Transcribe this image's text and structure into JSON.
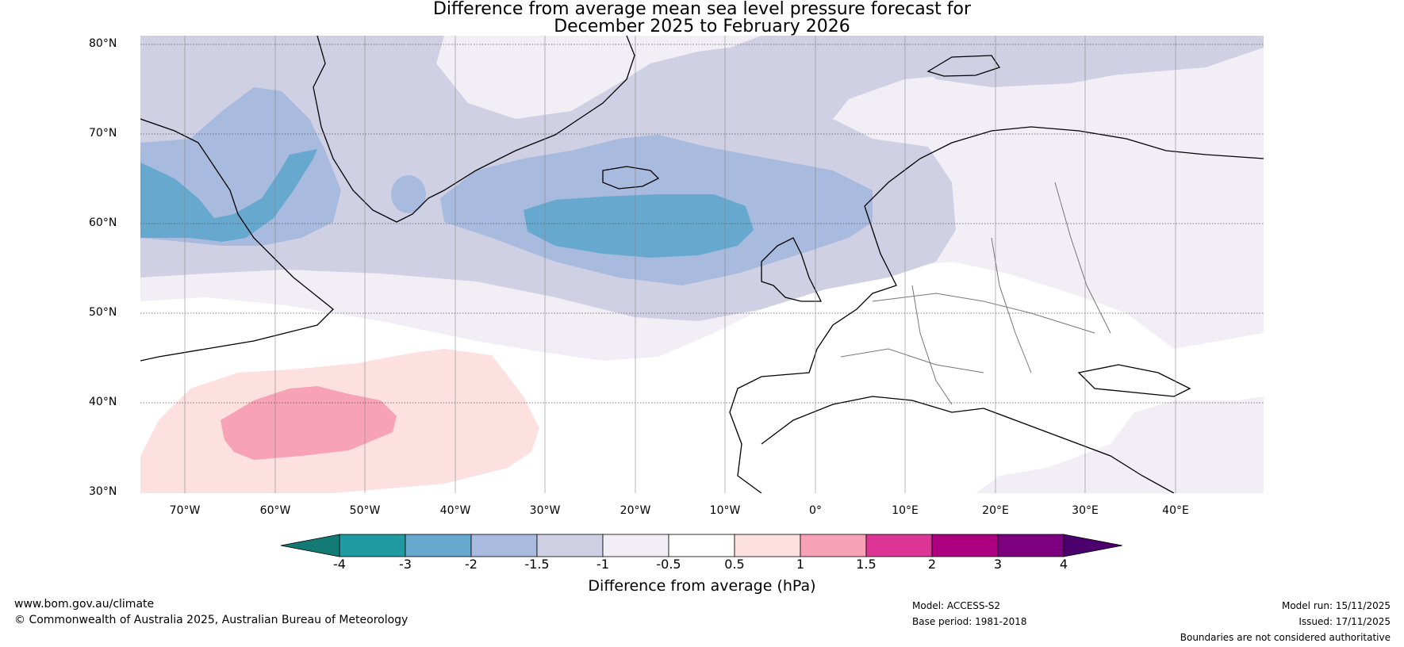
{
  "title": {
    "line1": "Difference from average mean sea level pressure forecast for",
    "line2": "December 2025 to February 2026"
  },
  "map": {
    "lat_labels": [
      "80°N",
      "70°N",
      "60°N",
      "50°N",
      "40°N",
      "30°N"
    ],
    "lon_labels": [
      "70°W",
      "60°W",
      "50°W",
      "40°W",
      "30°W",
      "20°W",
      "10°W",
      "0°",
      "10°E",
      "20°E",
      "30°E",
      "40°E"
    ]
  },
  "colorbar": {
    "label": "Difference from average (hPa)",
    "ticks": [
      "-4",
      "-3",
      "-2",
      "-1.5",
      "-1",
      "-0.5",
      "0.5",
      "1",
      "1.5",
      "2",
      "3",
      "4"
    ],
    "colors": [
      "#137a76",
      "#1e9aa0",
      "#67a8cf",
      "#a8bade",
      "#cfd0e4",
      "#f2eef6",
      "#ffffff",
      "#fde0e0",
      "#f7a2b6",
      "#dd3596",
      "#ac0080",
      "#7c0080",
      "#4b006d"
    ]
  },
  "footer": {
    "website": "www.bom.gov.au/climate",
    "copyright": "© Commonwealth of Australia 2025, Australian Bureau of Meteorology",
    "model": "Model: ACCESS-S2",
    "base_period": "Base period: 1981-2018",
    "model_run": "Model run: 15/11/2025",
    "issued": "Issued: 17/11/2025",
    "disclaimer": "Boundaries are not considered authoritative"
  }
}
